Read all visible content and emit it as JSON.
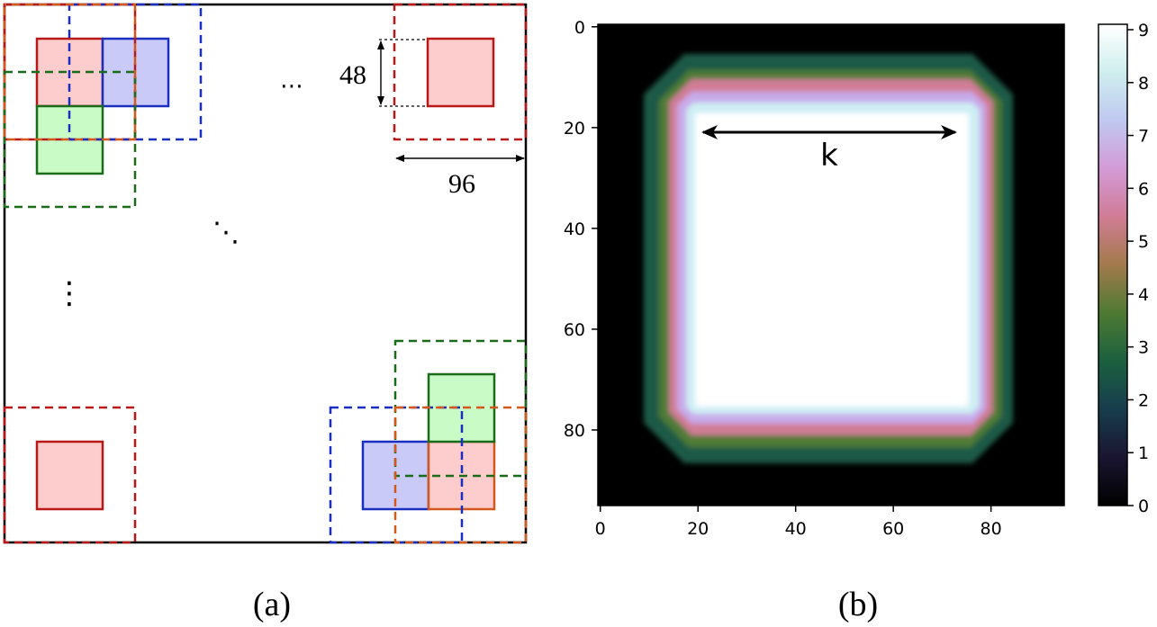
{
  "panel_a": {
    "caption": "(a)",
    "dim_height": "48",
    "dim_width": "96",
    "ellipsis_h": "⋯",
    "ellipsis_d": "⋱",
    "ellipsis_v": "⋮",
    "colors": {
      "red": "#b81818",
      "red_fill": "#fdcccc",
      "blue": "#1a2fc0",
      "blue_fill": "#c9caf8",
      "green": "#1a6b1a",
      "green_fill": "#c9fbc7",
      "orange": "#d2581c"
    }
  },
  "panel_b": {
    "caption": "(b)",
    "arrow_label": "k",
    "x_ticks": [
      "0",
      "20",
      "40",
      "60",
      "80"
    ],
    "y_ticks": [
      "0",
      "20",
      "40",
      "60",
      "80"
    ],
    "colorbar_ticks": [
      "0",
      "1",
      "2",
      "3",
      "4",
      "5",
      "6",
      "7",
      "8",
      "9"
    ],
    "colormap": "cubehelix"
  }
}
